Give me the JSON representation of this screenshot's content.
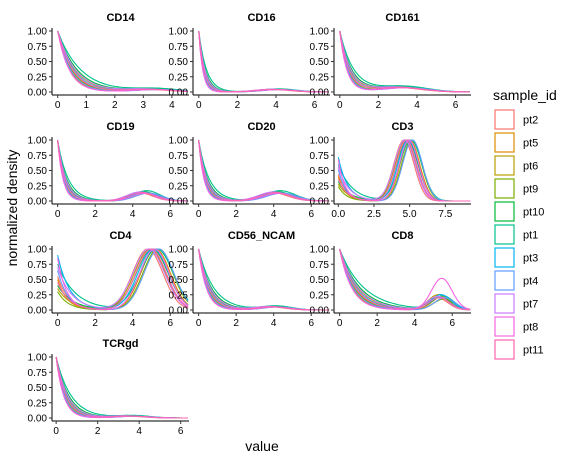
{
  "chart_data": {
    "type": "line",
    "layout": "facet_wrap",
    "xlabel": "value",
    "ylabel": "normalized density",
    "legend": {
      "title": "sample_id",
      "position": "right",
      "entries": [
        "pt2",
        "pt5",
        "pt6",
        "pt9",
        "pt10",
        "pt1",
        "pt3",
        "pt4",
        "pt7",
        "pt8",
        "pt11"
      ]
    },
    "colors": {
      "pt2": "#F8766D",
      "pt5": "#DE8C00",
      "pt6": "#B79F00",
      "pt9": "#7CAE00",
      "pt10": "#00BA38",
      "pt1": "#00C08B",
      "pt3": "#00B4F0",
      "pt4": "#619CFF",
      "pt7": "#C77CFF",
      "pt8": "#F564E3",
      "pt11": "#FF64B0"
    },
    "ylim": [
      0,
      1
    ],
    "y_ticks": [
      "0.00",
      "0.25",
      "0.50",
      "0.75",
      "1.00"
    ],
    "panels": [
      {
        "title": "CD14",
        "xlim": [
          -0.2,
          4.6
        ],
        "x_ticks": [
          0,
          1,
          2,
          3,
          4
        ],
        "shape": "decay",
        "decay": 0.5,
        "bump": {
          "center": 3.3,
          "height": 0.04,
          "width": 0.8
        }
      },
      {
        "title": "CD16",
        "xlim": [
          -0.3,
          6.8
        ],
        "x_ticks": [
          0,
          2,
          4,
          6
        ],
        "shape": "decay",
        "decay": 0.25,
        "bump": {
          "center": 4.0,
          "height": 0.04,
          "width": 0.9
        }
      },
      {
        "title": "CD161",
        "xlim": [
          -0.3,
          6.8
        ],
        "x_ticks": [
          0,
          2,
          4,
          6
        ],
        "shape": "decay",
        "decay": 0.45,
        "bump": {
          "center": 3.2,
          "height": 0.07,
          "width": 1.2
        }
      },
      {
        "title": "CD19",
        "xlim": [
          -0.3,
          7.0
        ],
        "x_ticks": [
          0,
          2,
          4,
          6
        ],
        "shape": "decay",
        "decay": 0.35,
        "bump": {
          "center": 4.6,
          "height": 0.13,
          "width": 0.7
        }
      },
      {
        "title": "CD20",
        "xlim": [
          -0.3,
          7.0
        ],
        "x_ticks": [
          0,
          2,
          4,
          6
        ],
        "shape": "decay",
        "decay": 0.35,
        "bump": {
          "center": 4.2,
          "height": 0.13,
          "width": 0.8
        }
      },
      {
        "title": "CD3",
        "xlim": [
          -0.3,
          9.3
        ],
        "x_ticks": [
          0,
          2.5,
          5,
          7.5
        ],
        "x_tick_labels": [
          "0.0",
          "2.5",
          "5.0",
          "7.5"
        ],
        "shape": "bimodal",
        "lowPeak": 0.8,
        "peakCenter": 4.9,
        "peakWidth": 0.7
      },
      {
        "title": "CD4",
        "xlim": [
          -0.3,
          7.0
        ],
        "x_ticks": [
          0,
          2,
          4,
          6
        ],
        "shape": "bimodal",
        "lowPeak": 1.0,
        "peakCenter": 5.1,
        "peakWidth": 0.8
      },
      {
        "title": "CD56_NCAM",
        "xlim": [
          -0.3,
          7.0
        ],
        "x_ticks": [
          0,
          2,
          4,
          6
        ],
        "shape": "decay",
        "decay": 0.5,
        "bump": {
          "center": 4.0,
          "height": 0.05,
          "width": 0.8
        }
      },
      {
        "title": "CD8",
        "xlim": [
          -0.3,
          7.0
        ],
        "x_ticks": [
          0,
          2,
          4,
          6
        ],
        "shape": "decayPeak",
        "decay": 0.8,
        "peakCenter": 5.4,
        "peakHeights": [
          0.2,
          0.22,
          0.25,
          0.18,
          0.2,
          0.22,
          0.25,
          0.2,
          0.22,
          0.52,
          0.2
        ]
      },
      {
        "title": "TCRgd",
        "xlim": [
          -0.2,
          6.4
        ],
        "x_ticks": [
          0,
          2,
          4,
          6
        ],
        "shape": "decay",
        "decay": 0.45,
        "bump": {
          "center": 3.6,
          "height": 0.03,
          "width": 0.8
        }
      }
    ]
  }
}
